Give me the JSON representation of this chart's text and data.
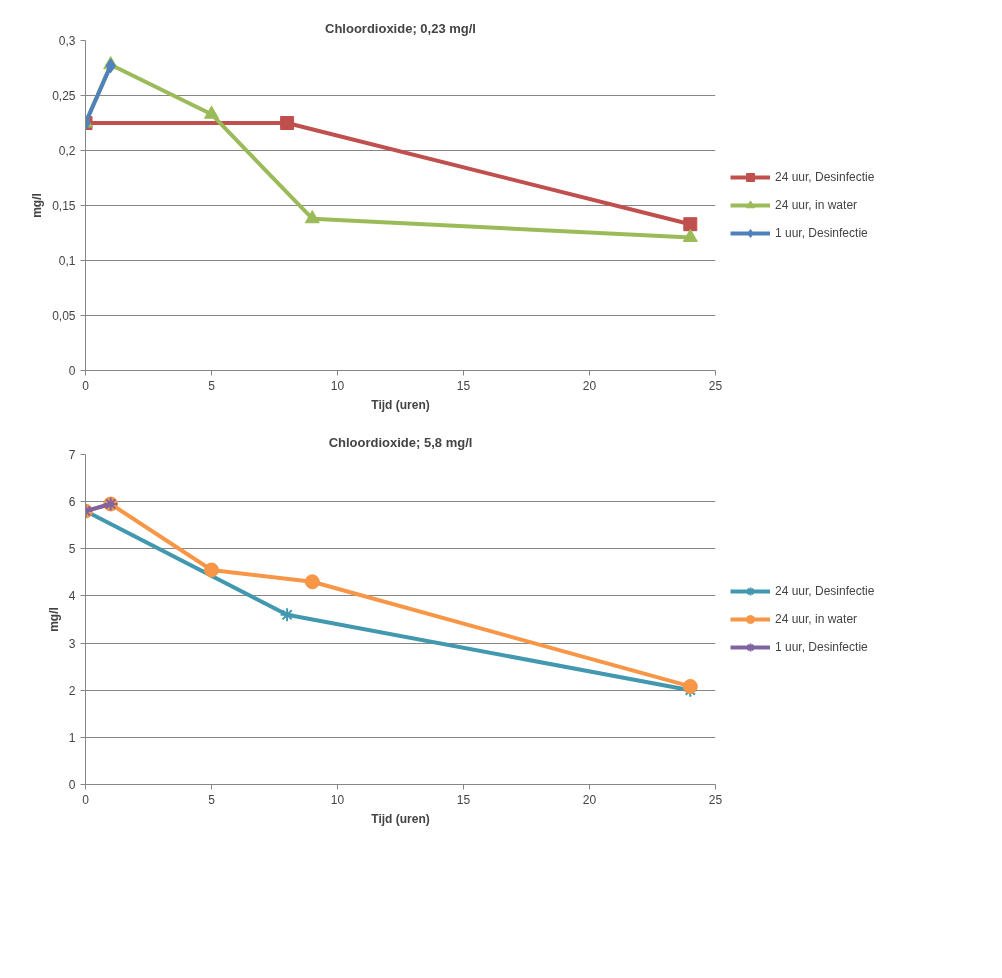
{
  "chart_data": [
    {
      "type": "line",
      "title": "Chloordioxide; 0,23 mg/l",
      "xlabel": "Tijd (uren)",
      "ylabel": "mg/l",
      "xlim": [
        0,
        25
      ],
      "xticks": [
        0,
        5,
        10,
        15,
        20,
        25
      ],
      "ylim": [
        0,
        0.3
      ],
      "yticks": [
        0,
        {
          "value": 0.05,
          "label": "0,05"
        },
        {
          "value": 0.1,
          "label": "0,1"
        },
        {
          "value": 0.15,
          "label": "0,15"
        },
        {
          "value": 0.2,
          "label": "0,2"
        },
        {
          "value": 0.25,
          "label": "0,25"
        },
        {
          "value": 0.3,
          "label": "0,3"
        }
      ],
      "grid": "y",
      "legend": "right",
      "series": [
        {
          "name": "24 uur, Desinfectie",
          "color": "#c0504d",
          "marker": "square",
          "x": [
            0,
            8,
            24
          ],
          "values": [
            0.225,
            0.225,
            0.133
          ]
        },
        {
          "name": "24 uur, in water",
          "color": "#9bbb59",
          "marker": "triangle",
          "x": [
            0,
            1,
            5,
            9,
            24
          ],
          "values": [
            0.225,
            0.278,
            0.233,
            0.138,
            0.121
          ]
        },
        {
          "name": "1 uur, Desinfectie",
          "color": "#4f81bd",
          "marker": "diamond",
          "x": [
            0,
            1
          ],
          "values": [
            0.225,
            0.277
          ]
        }
      ]
    },
    {
      "type": "line",
      "title": "Chloordioxide; 5,8 mg/l",
      "xlabel": "Tijd (uren)",
      "ylabel": "mg/l",
      "xlim": [
        0,
        25
      ],
      "xticks": [
        0,
        5,
        10,
        15,
        20,
        25
      ],
      "ylim": [
        0,
        7
      ],
      "yticks": [
        0,
        1,
        2,
        3,
        4,
        5,
        6,
        7
      ],
      "grid": "y",
      "legend": "right",
      "series": [
        {
          "name": "24 uur, Desinfectie",
          "color": "#4198af",
          "marker": "cross",
          "x": [
            0,
            8,
            24
          ],
          "values": [
            5.8,
            3.6,
            2.0
          ]
        },
        {
          "name": "24 uur, in water",
          "color": "#f79646",
          "marker": "circle",
          "x": [
            0,
            1,
            5,
            9,
            24
          ],
          "values": [
            5.8,
            5.95,
            4.55,
            4.3,
            2.08
          ]
        },
        {
          "name": "1 uur, Desinfectie",
          "color": "#8064a2",
          "marker": "cross",
          "x": [
            0,
            1
          ],
          "values": [
            5.8,
            5.95
          ]
        }
      ]
    }
  ]
}
